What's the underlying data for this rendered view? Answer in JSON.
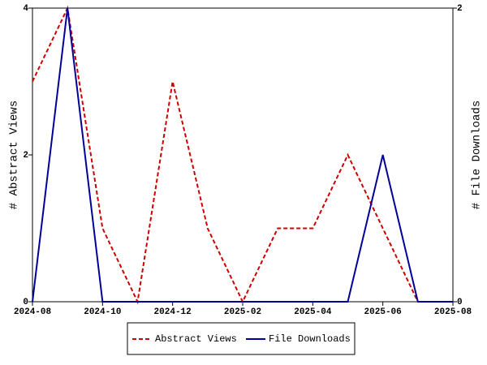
{
  "chart_data": {
    "type": "line",
    "categories": [
      "2024-08",
      null,
      "2024-10",
      null,
      "2024-12",
      null,
      "2025-02",
      null,
      "2025-04",
      null,
      "2025-06",
      null,
      "2025-08"
    ],
    "series": [
      {
        "name": "Abstract Views",
        "color": "#cc0000",
        "line_style": "dashed",
        "axis": "y",
        "values": [
          3,
          4,
          1,
          0,
          3,
          1,
          0,
          1,
          1,
          2,
          1,
          0,
          0
        ]
      },
      {
        "name": "File Downloads",
        "color": "#000099",
        "line_style": "solid",
        "axis": "y2",
        "values": [
          0,
          2,
          0,
          0,
          0,
          0,
          0,
          0,
          0,
          0,
          1,
          0,
          0
        ]
      }
    ],
    "ylabel": "# Abstract Views",
    "y2label": "# File Downloads",
    "ylim": [
      0,
      4
    ],
    "yticks": [
      0,
      2,
      4
    ],
    "y2lim": [
      0,
      2
    ],
    "y2ticks": [
      0,
      2
    ],
    "legend": "bottom"
  }
}
